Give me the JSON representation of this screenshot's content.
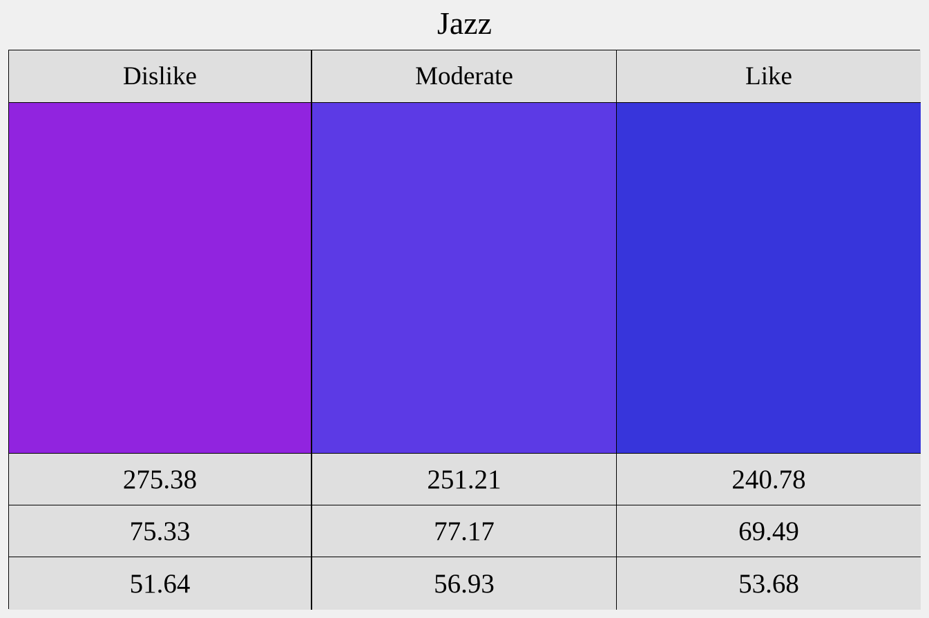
{
  "chart_data": {
    "type": "table",
    "title": "Jazz",
    "categories": [
      "Dislike",
      "Moderate",
      "Like"
    ],
    "colors": [
      "#9124df",
      "#5c3ae5",
      "#3735db"
    ],
    "rows": [
      [
        "275.38",
        "251.21",
        "240.78"
      ],
      [
        "75.33",
        "77.17",
        "69.49"
      ],
      [
        "51.64",
        "56.93",
        "53.68"
      ]
    ]
  }
}
